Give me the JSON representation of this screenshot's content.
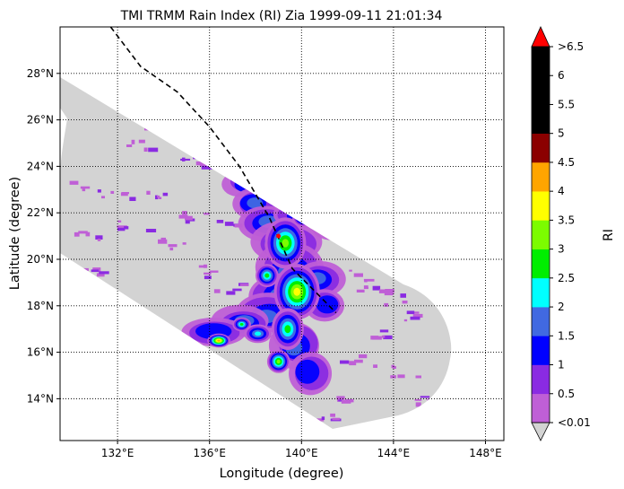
{
  "chart_data": {
    "type": "heatmap",
    "title": "TMI TRMM Rain Index (RI) Zia 1999-09-11 21:01:34",
    "xlabel": "Longitude (degree)",
    "ylabel": "Latitude (degree)",
    "xlim": [
      129.5,
      148.8
    ],
    "ylim": [
      12.2,
      30.0
    ],
    "x_ticks": [
      132,
      136,
      140,
      144,
      148
    ],
    "x_tick_labels": [
      "132°E",
      "136°E",
      "140°E",
      "144°E",
      "148°E"
    ],
    "y_ticks": [
      14,
      16,
      18,
      20,
      22,
      24,
      26,
      28
    ],
    "y_tick_labels": [
      "14°N",
      "16°N",
      "18°N",
      "20°N",
      "22°N",
      "24°N",
      "26°N",
      "28°N"
    ],
    "grid": true,
    "colorbar": {
      "label": "RI",
      "tick_labels": [
        "<0.01",
        "0.5",
        "1",
        "1.5",
        "2",
        "2.5",
        "3",
        "3.5",
        "4",
        "4.5",
        "5",
        "5.5",
        "6",
        ">6.5"
      ],
      "colors": [
        "#bf5fd6",
        "#8a2be2",
        "#0000ff",
        "#4169e1",
        "#00ffff",
        "#00ee00",
        "#7cfc00",
        "#ffff00",
        "#ffa500",
        "#8b0000",
        "#000000",
        "#000000",
        "#000000"
      ],
      "extend_min_color": "#d3d3d3",
      "extend_max_color": "#ff0000"
    },
    "swath_color": "#d3d3d3",
    "storm_track": {
      "lon": [
        131.7,
        133.0,
        134.6,
        136.0,
        137.3,
        138.6,
        139.6,
        140.6,
        141.5
      ],
      "lat": [
        30.0,
        28.3,
        27.2,
        25.7,
        24.0,
        21.8,
        19.6,
        18.6,
        17.7
      ],
      "style": "dashed"
    },
    "storm_center": {
      "lon": 139.0,
      "lat": 21.0
    },
    "rain_cells": [
      {
        "lon": 139.3,
        "lat": 20.7,
        "rx": 0.9,
        "ry": 1.1,
        "level": 6
      },
      {
        "lon": 139.8,
        "lat": 18.6,
        "rx": 1.0,
        "ry": 1.2,
        "level": 7
      },
      {
        "lon": 139.4,
        "lat": 17.0,
        "rx": 0.7,
        "ry": 0.9,
        "level": 5
      },
      {
        "lon": 139.0,
        "lat": 15.6,
        "rx": 0.5,
        "ry": 0.5,
        "level": 6
      },
      {
        "lon": 136.4,
        "lat": 16.5,
        "rx": 0.5,
        "ry": 0.3,
        "level": 8
      },
      {
        "lon": 137.4,
        "lat": 17.2,
        "rx": 0.4,
        "ry": 0.3,
        "level": 5
      },
      {
        "lon": 140.1,
        "lat": 21.8,
        "rx": 0.5,
        "ry": 0.4,
        "level": 6
      },
      {
        "lon": 138.5,
        "lat": 19.3,
        "rx": 0.5,
        "ry": 0.5,
        "level": 5
      },
      {
        "lon": 138.1,
        "lat": 16.8,
        "rx": 0.6,
        "ry": 0.4,
        "level": 4
      }
    ]
  }
}
